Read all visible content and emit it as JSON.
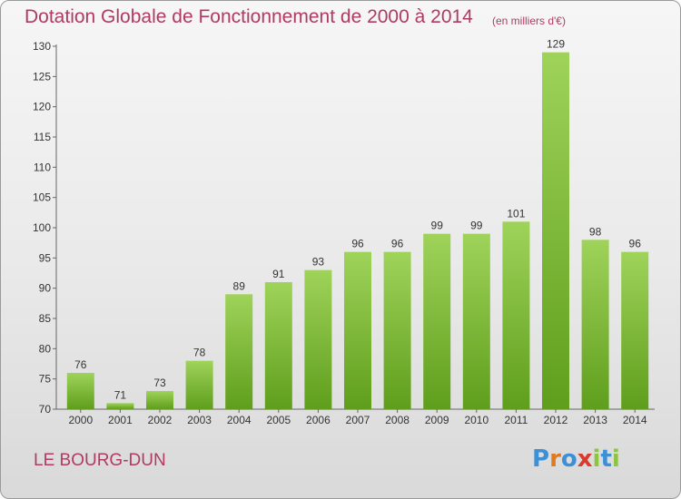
{
  "header": {
    "title": "Dotation Globale de Fonctionnement de 2000 à 2014",
    "unit": "(en milliers d'€)"
  },
  "footer": {
    "commune": "LE BOURG-DUN",
    "logo_letters": [
      {
        "char": "P",
        "color": "#3d8fd6"
      },
      {
        "char": "r",
        "color": "#e07a1f"
      },
      {
        "char": "o",
        "color": "#3d8fd6"
      },
      {
        "char": "x",
        "color": "#d93a2b"
      },
      {
        "char": "i",
        "color": "#8cc63f"
      },
      {
        "char": "t",
        "color": "#3d8fd6"
      },
      {
        "char": "i",
        "color": "#8cc63f"
      }
    ]
  },
  "colors": {
    "bar_light": "#9fd35a",
    "bar_dark": "#5f9e1c",
    "title": "#b03a64",
    "axis": "#666666"
  },
  "chart_data": {
    "type": "bar",
    "categories": [
      "2000",
      "2001",
      "2002",
      "2003",
      "2004",
      "2005",
      "2006",
      "2007",
      "2008",
      "2009",
      "2010",
      "2011",
      "2012",
      "2013",
      "2014"
    ],
    "values": [
      76,
      71,
      73,
      78,
      89,
      91,
      93,
      96,
      96,
      99,
      99,
      101,
      129,
      98,
      96
    ],
    "ylim": [
      70,
      130
    ],
    "yticks": [
      70,
      75,
      80,
      85,
      90,
      95,
      100,
      105,
      110,
      115,
      120,
      125,
      130
    ],
    "grid": false,
    "data_labels": true
  }
}
